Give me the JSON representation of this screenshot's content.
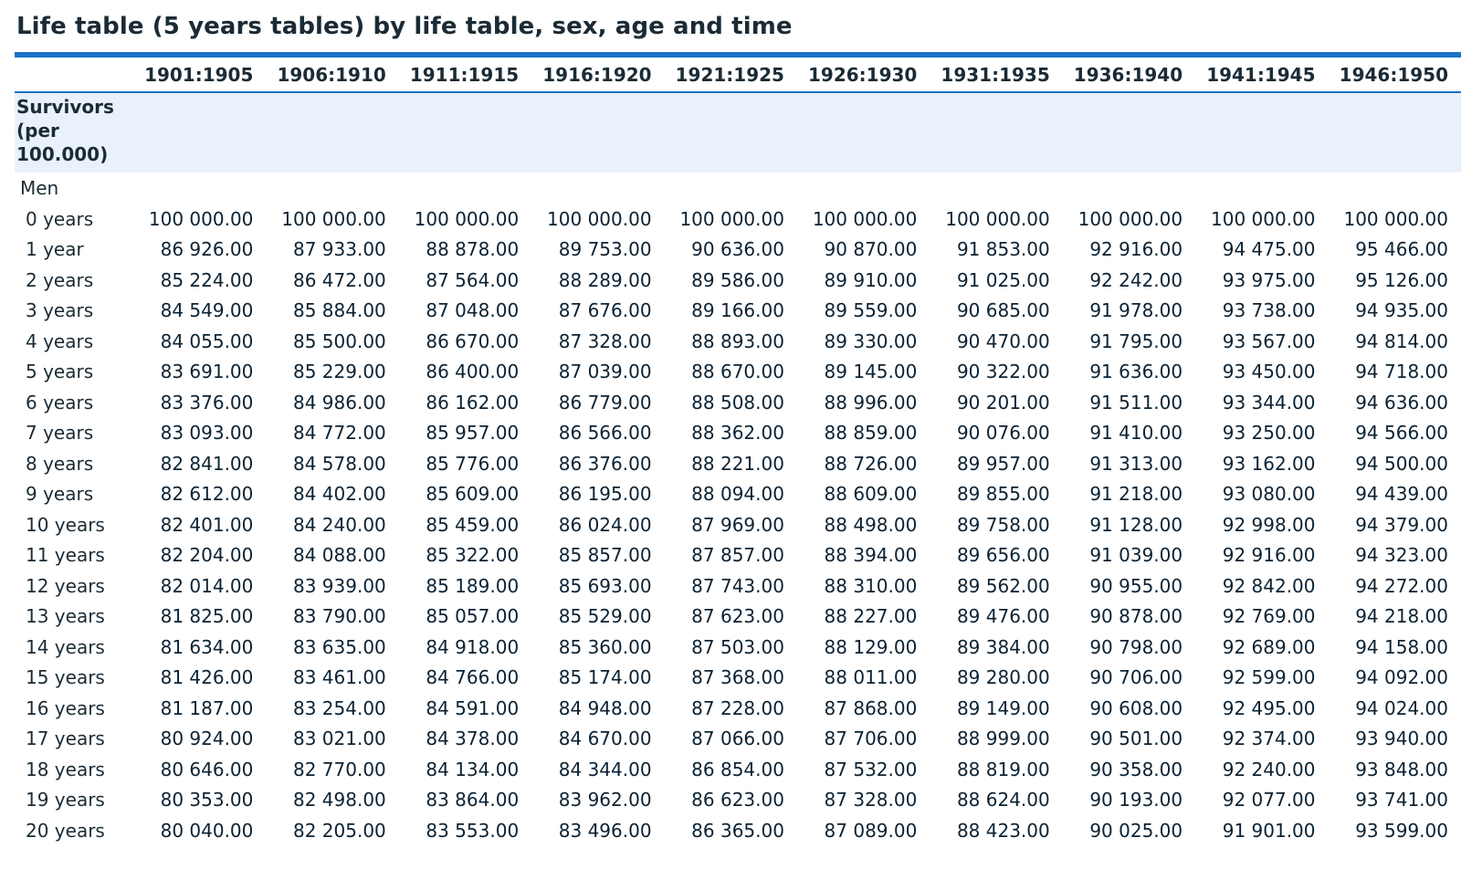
{
  "title": "Life table (5 years tables) by life table, sex, age and time",
  "columns": [
    "1901:1905",
    "1906:1910",
    "1911:1915",
    "1916:1920",
    "1921:1925",
    "1926:1930",
    "1931:1935",
    "1936:1940",
    "1941:1945",
    "1946:1950"
  ],
  "section_label": "Survivors (per 100.000)",
  "group_label": "Men",
  "rows": [
    {
      "label": "0 years",
      "values": [
        "100 000.00",
        "100 000.00",
        "100 000.00",
        "100 000.00",
        "100 000.00",
        "100 000.00",
        "100 000.00",
        "100 000.00",
        "100 000.00",
        "100 000.00"
      ]
    },
    {
      "label": "1 year",
      "values": [
        "86 926.00",
        "87 933.00",
        "88 878.00",
        "89 753.00",
        "90 636.00",
        "90 870.00",
        "91 853.00",
        "92 916.00",
        "94 475.00",
        "95 466.00"
      ]
    },
    {
      "label": "2 years",
      "values": [
        "85 224.00",
        "86 472.00",
        "87 564.00",
        "88 289.00",
        "89 586.00",
        "89 910.00",
        "91 025.00",
        "92 242.00",
        "93 975.00",
        "95 126.00"
      ]
    },
    {
      "label": "3 years",
      "values": [
        "84 549.00",
        "85 884.00",
        "87 048.00",
        "87 676.00",
        "89 166.00",
        "89 559.00",
        "90 685.00",
        "91 978.00",
        "93 738.00",
        "94 935.00"
      ]
    },
    {
      "label": "4 years",
      "values": [
        "84 055.00",
        "85 500.00",
        "86 670.00",
        "87 328.00",
        "88 893.00",
        "89 330.00",
        "90 470.00",
        "91 795.00",
        "93 567.00",
        "94 814.00"
      ]
    },
    {
      "label": "5 years",
      "values": [
        "83 691.00",
        "85 229.00",
        "86 400.00",
        "87 039.00",
        "88 670.00",
        "89 145.00",
        "90 322.00",
        "91 636.00",
        "93 450.00",
        "94 718.00"
      ]
    },
    {
      "label": "6 years",
      "values": [
        "83 376.00",
        "84 986.00",
        "86 162.00",
        "86 779.00",
        "88 508.00",
        "88 996.00",
        "90 201.00",
        "91 511.00",
        "93 344.00",
        "94 636.00"
      ]
    },
    {
      "label": "7 years",
      "values": [
        "83 093.00",
        "84 772.00",
        "85 957.00",
        "86 566.00",
        "88 362.00",
        "88 859.00",
        "90 076.00",
        "91 410.00",
        "93 250.00",
        "94 566.00"
      ]
    },
    {
      "label": "8 years",
      "values": [
        "82 841.00",
        "84 578.00",
        "85 776.00",
        "86 376.00",
        "88 221.00",
        "88 726.00",
        "89 957.00",
        "91 313.00",
        "93 162.00",
        "94 500.00"
      ]
    },
    {
      "label": "9 years",
      "values": [
        "82 612.00",
        "84 402.00",
        "85 609.00",
        "86 195.00",
        "88 094.00",
        "88 609.00",
        "89 855.00",
        "91 218.00",
        "93 080.00",
        "94 439.00"
      ]
    },
    {
      "label": "10 years",
      "values": [
        "82 401.00",
        "84 240.00",
        "85 459.00",
        "86 024.00",
        "87 969.00",
        "88 498.00",
        "89 758.00",
        "91 128.00",
        "92 998.00",
        "94 379.00"
      ]
    },
    {
      "label": "11 years",
      "values": [
        "82 204.00",
        "84 088.00",
        "85 322.00",
        "85 857.00",
        "87 857.00",
        "88 394.00",
        "89 656.00",
        "91 039.00",
        "92 916.00",
        "94 323.00"
      ]
    },
    {
      "label": "12 years",
      "values": [
        "82 014.00",
        "83 939.00",
        "85 189.00",
        "85 693.00",
        "87 743.00",
        "88 310.00",
        "89 562.00",
        "90 955.00",
        "92 842.00",
        "94 272.00"
      ]
    },
    {
      "label": "13 years",
      "values": [
        "81 825.00",
        "83 790.00",
        "85 057.00",
        "85 529.00",
        "87 623.00",
        "88 227.00",
        "89 476.00",
        "90 878.00",
        "92 769.00",
        "94 218.00"
      ]
    },
    {
      "label": "14 years",
      "values": [
        "81 634.00",
        "83 635.00",
        "84 918.00",
        "85 360.00",
        "87 503.00",
        "88 129.00",
        "89 384.00",
        "90 798.00",
        "92 689.00",
        "94 158.00"
      ]
    },
    {
      "label": "15 years",
      "values": [
        "81 426.00",
        "83 461.00",
        "84 766.00",
        "85 174.00",
        "87 368.00",
        "88 011.00",
        "89 280.00",
        "90 706.00",
        "92 599.00",
        "94 092.00"
      ]
    },
    {
      "label": "16 years",
      "values": [
        "81 187.00",
        "83 254.00",
        "84 591.00",
        "84 948.00",
        "87 228.00",
        "87 868.00",
        "89 149.00",
        "90 608.00",
        "92 495.00",
        "94 024.00"
      ]
    },
    {
      "label": "17 years",
      "values": [
        "80 924.00",
        "83 021.00",
        "84 378.00",
        "84 670.00",
        "87 066.00",
        "87 706.00",
        "88 999.00",
        "90 501.00",
        "92 374.00",
        "93 940.00"
      ]
    },
    {
      "label": "18 years",
      "values": [
        "80 646.00",
        "82 770.00",
        "84 134.00",
        "84 344.00",
        "86 854.00",
        "87 532.00",
        "88 819.00",
        "90 358.00",
        "92 240.00",
        "93 848.00"
      ]
    },
    {
      "label": "19 years",
      "values": [
        "80 353.00",
        "82 498.00",
        "83 864.00",
        "83 962.00",
        "86 623.00",
        "87 328.00",
        "88 624.00",
        "90 193.00",
        "92 077.00",
        "93 741.00"
      ]
    },
    {
      "label": "20 years",
      "values": [
        "80 040.00",
        "82 205.00",
        "83 553.00",
        "83 496.00",
        "86 365.00",
        "87 089.00",
        "88 423.00",
        "90 025.00",
        "91 901.00",
        "93 599.00"
      ]
    }
  ]
}
